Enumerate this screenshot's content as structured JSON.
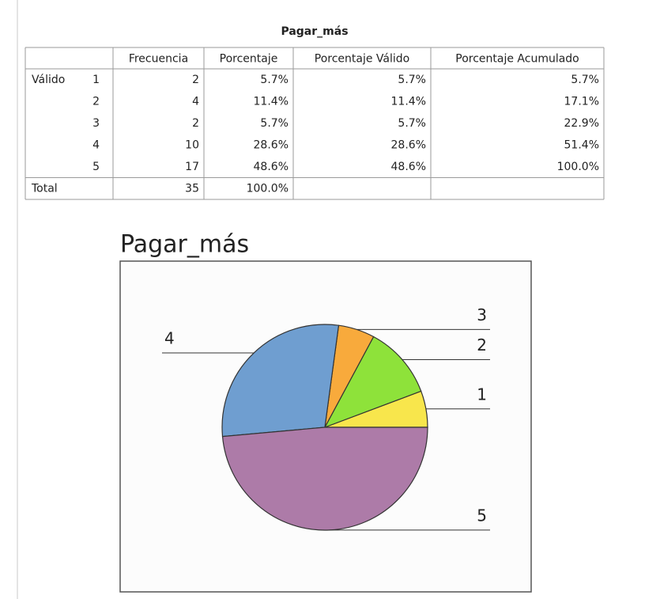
{
  "table": {
    "title": "Pagar_más",
    "headers": [
      "Frecuencia",
      "Porcentaje",
      "Porcentaje Válido",
      "Porcentaje Acumulado"
    ],
    "group": "Válido",
    "rows": [
      {
        "label": "1",
        "cells": [
          "2",
          "5.7%",
          "5.7%",
          "5.7%"
        ]
      },
      {
        "label": "2",
        "cells": [
          "4",
          "11.4%",
          "11.4%",
          "17.1%"
        ]
      },
      {
        "label": "3",
        "cells": [
          "2",
          "5.7%",
          "5.7%",
          "22.9%"
        ]
      },
      {
        "label": "4",
        "cells": [
          "10",
          "28.6%",
          "28.6%",
          "51.4%"
        ]
      },
      {
        "label": "5",
        "cells": [
          "17",
          "48.6%",
          "48.6%",
          "100.0%"
        ]
      }
    ],
    "total": {
      "label": "Total",
      "cells": [
        "35",
        "100.0%"
      ]
    }
  },
  "chart_data": {
    "type": "pie",
    "title": "Pagar_más",
    "categories": [
      "1",
      "2",
      "3",
      "4",
      "5"
    ],
    "values": [
      2,
      4,
      2,
      10,
      17
    ],
    "colors": [
      "#f8e64c",
      "#8ee23a",
      "#f8aa3c",
      "#6f9ed0",
      "#ad7ba8"
    ]
  }
}
